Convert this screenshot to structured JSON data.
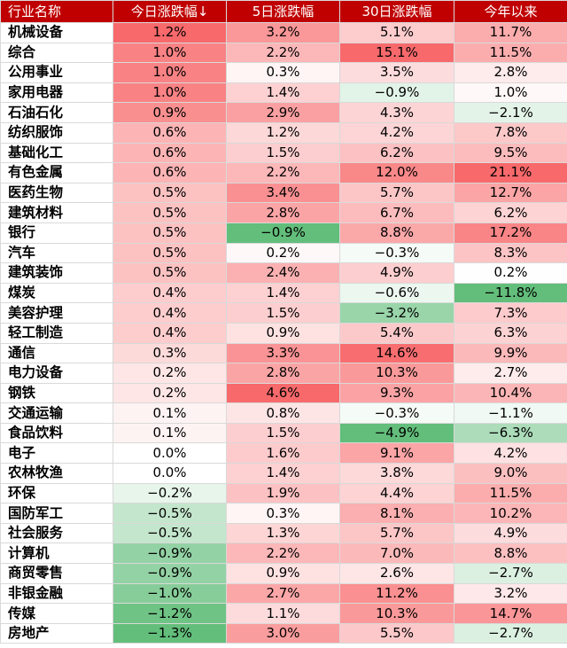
{
  "table": {
    "headers": [
      "行业名称",
      "今日涨跌幅↓",
      "5日涨跌幅",
      "30日涨跌幅",
      "今年以来"
    ],
    "rows": [
      [
        "机械设备",
        "1.2%",
        "3.2%",
        "5.1%",
        "11.7%"
      ],
      [
        "综合",
        "1.0%",
        "2.2%",
        "15.1%",
        "11.5%"
      ],
      [
        "公用事业",
        "1.0%",
        "0.3%",
        "3.5%",
        "2.8%"
      ],
      [
        "家用电器",
        "1.0%",
        "1.4%",
        "−0.9%",
        "1.0%"
      ],
      [
        "石油石化",
        "0.9%",
        "2.9%",
        "4.3%",
        "−2.1%"
      ],
      [
        "纺织服饰",
        "0.6%",
        "1.2%",
        "4.2%",
        "7.8%"
      ],
      [
        "基础化工",
        "0.6%",
        "1.5%",
        "6.2%",
        "9.5%"
      ],
      [
        "有色金属",
        "0.6%",
        "2.2%",
        "12.0%",
        "21.1%"
      ],
      [
        "医药生物",
        "0.5%",
        "3.4%",
        "5.7%",
        "12.7%"
      ],
      [
        "建筑材料",
        "0.5%",
        "2.8%",
        "6.7%",
        "6.2%"
      ],
      [
        "银行",
        "0.5%",
        "−0.9%",
        "8.8%",
        "17.2%"
      ],
      [
        "汽车",
        "0.5%",
        "0.2%",
        "−0.3%",
        "8.3%"
      ],
      [
        "建筑装饰",
        "0.5%",
        "2.4%",
        "4.9%",
        "0.2%"
      ],
      [
        "煤炭",
        "0.4%",
        "1.4%",
        "−0.6%",
        "−11.8%"
      ],
      [
        "美容护理",
        "0.4%",
        "1.5%",
        "−3.2%",
        "7.3%"
      ],
      [
        "轻工制造",
        "0.4%",
        "0.9%",
        "5.4%",
        "6.3%"
      ],
      [
        "通信",
        "0.3%",
        "3.3%",
        "14.6%",
        "9.9%"
      ],
      [
        "电力设备",
        "0.2%",
        "2.8%",
        "10.3%",
        "2.7%"
      ],
      [
        "钢铁",
        "0.2%",
        "4.6%",
        "9.3%",
        "10.4%"
      ],
      [
        "交通运输",
        "0.1%",
        "0.8%",
        "−0.3%",
        "−1.1%"
      ],
      [
        "食品饮料",
        "0.1%",
        "1.5%",
        "−4.9%",
        "−6.3%"
      ],
      [
        "电子",
        "0.0%",
        "1.6%",
        "9.1%",
        "4.2%"
      ],
      [
        "农林牧渔",
        "0.0%",
        "1.4%",
        "3.8%",
        "9.0%"
      ],
      [
        "环保",
        "−0.2%",
        "1.9%",
        "4.4%",
        "11.5%"
      ],
      [
        "国防军工",
        "−0.5%",
        "0.3%",
        "8.1%",
        "10.2%"
      ],
      [
        "社会服务",
        "−0.5%",
        "1.3%",
        "5.7%",
        "4.9%"
      ],
      [
        "计算机",
        "−0.9%",
        "2.2%",
        "7.0%",
        "8.8%"
      ],
      [
        "商贸零售",
        "−0.9%",
        "0.9%",
        "2.6%",
        "−2.7%"
      ],
      [
        "非银金融",
        "−1.0%",
        "2.7%",
        "11.2%",
        "3.2%"
      ],
      [
        "传媒",
        "−1.2%",
        "1.1%",
        "10.3%",
        "14.7%"
      ],
      [
        "房地产",
        "−1.3%",
        "3.0%",
        "5.5%",
        "−2.7%"
      ]
    ]
  },
  "colors": {
    "header_bg": "#c00000",
    "header_text": "#ffffff",
    "positive_max": "#f8696b",
    "negative_max": "#63be7b",
    "neutral": "#ffffff"
  }
}
